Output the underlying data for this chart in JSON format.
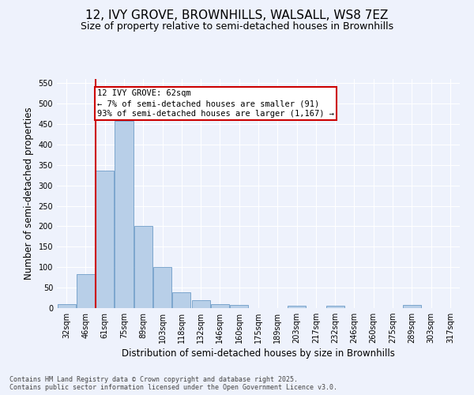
{
  "title_line1": "12, IVY GROVE, BROWNHILLS, WALSALL, WS8 7EZ",
  "title_line2": "Size of property relative to semi-detached houses in Brownhills",
  "xlabel": "Distribution of semi-detached houses by size in Brownhills",
  "ylabel": "Number of semi-detached properties",
  "categories": [
    "32sqm",
    "46sqm",
    "61sqm",
    "75sqm",
    "89sqm",
    "103sqm",
    "118sqm",
    "132sqm",
    "146sqm",
    "160sqm",
    "175sqm",
    "189sqm",
    "203sqm",
    "217sqm",
    "232sqm",
    "246sqm",
    "260sqm",
    "275sqm",
    "289sqm",
    "303sqm",
    "317sqm"
  ],
  "values": [
    10,
    83,
    336,
    458,
    200,
    101,
    39,
    20,
    10,
    8,
    0,
    0,
    5,
    0,
    5,
    0,
    0,
    0,
    7,
    0,
    0
  ],
  "bar_color": "#b8cfe8",
  "bar_edge_color": "#5a8fc0",
  "background_color": "#eef2fc",
  "grid_color": "#ffffff",
  "marker_line_color": "#cc0000",
  "annotation_box_color": "#ffffff",
  "annotation_box_edge_color": "#cc0000",
  "ylim": [
    0,
    560
  ],
  "yticks": [
    0,
    50,
    100,
    150,
    200,
    250,
    300,
    350,
    400,
    450,
    500,
    550
  ],
  "footer_line1": "Contains HM Land Registry data © Crown copyright and database right 2025.",
  "footer_line2": "Contains public sector information licensed under the Open Government Licence v3.0.",
  "title_fontsize": 11,
  "subtitle_fontsize": 9,
  "axis_label_fontsize": 8.5,
  "tick_fontsize": 7,
  "annotation_fontsize": 7.5,
  "footer_fontsize": 6
}
